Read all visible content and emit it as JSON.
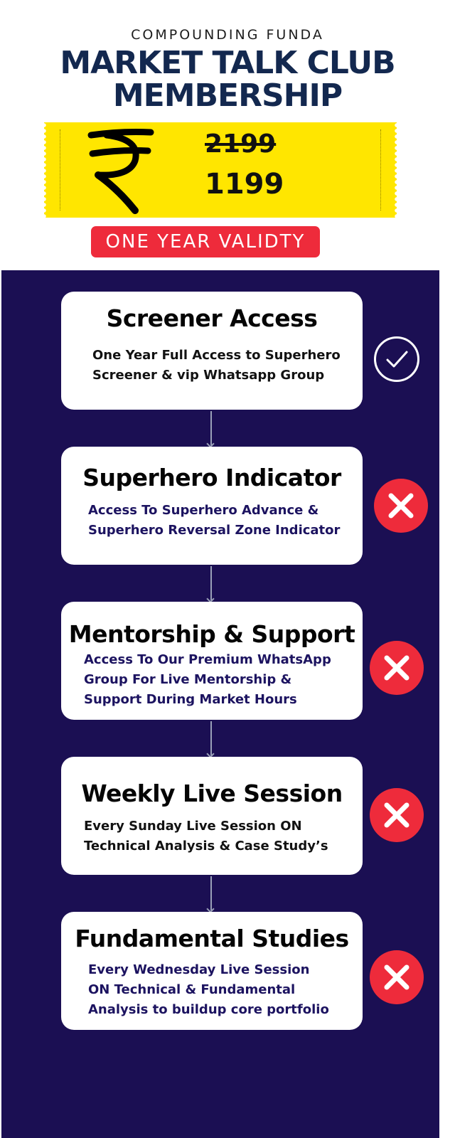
{
  "header": {
    "brand": "COMPOUNDING FUNDA",
    "title_line1": "MARKET TALK CLUB",
    "title_line2": "MEMBERSHIP"
  },
  "pricing": {
    "currency_icon": "rupee-icon",
    "original_price": "2199",
    "offer_price": "1199",
    "validity": "ONE YEAR VALIDTY"
  },
  "features": [
    {
      "title": "Screener Access",
      "line1": "One Year Full Access to Superhero",
      "line2": "Screener & vip Whatsapp Group",
      "status": "included",
      "status_icon": "check-circle-icon"
    },
    {
      "title": "Superhero Indicator",
      "line1": "Access To Superhero Advance &",
      "line2": "Superhero Reversal Zone Indicator",
      "status": "not-included",
      "status_icon": "cross-circle-icon"
    },
    {
      "title": "Mentorship & Support",
      "line1": "Access To Our Premium WhatsApp",
      "line2": "Group For Live Mentorship &",
      "line3": "Support During Market Hours",
      "status": "not-included",
      "status_icon": "cross-circle-icon"
    },
    {
      "title": "Weekly Live Session",
      "line1": "Every Sunday Live Session ON",
      "line2": "Technical Analysis & Case Study’s",
      "status": "not-included",
      "status_icon": "cross-circle-icon"
    },
    {
      "title": "Fundamental Studies",
      "line1": "Every Wednesday Live Session",
      "line2": "ON Technical  & Fundamental",
      "line3": "Analysis to buildup core portfolio",
      "status": "not-included",
      "status_icon": "cross-circle-icon"
    }
  ],
  "colors": {
    "title": "#13284f",
    "ticket": "#ffe600",
    "accent_red": "#ee2b3b",
    "panel": "#1b0f53"
  }
}
